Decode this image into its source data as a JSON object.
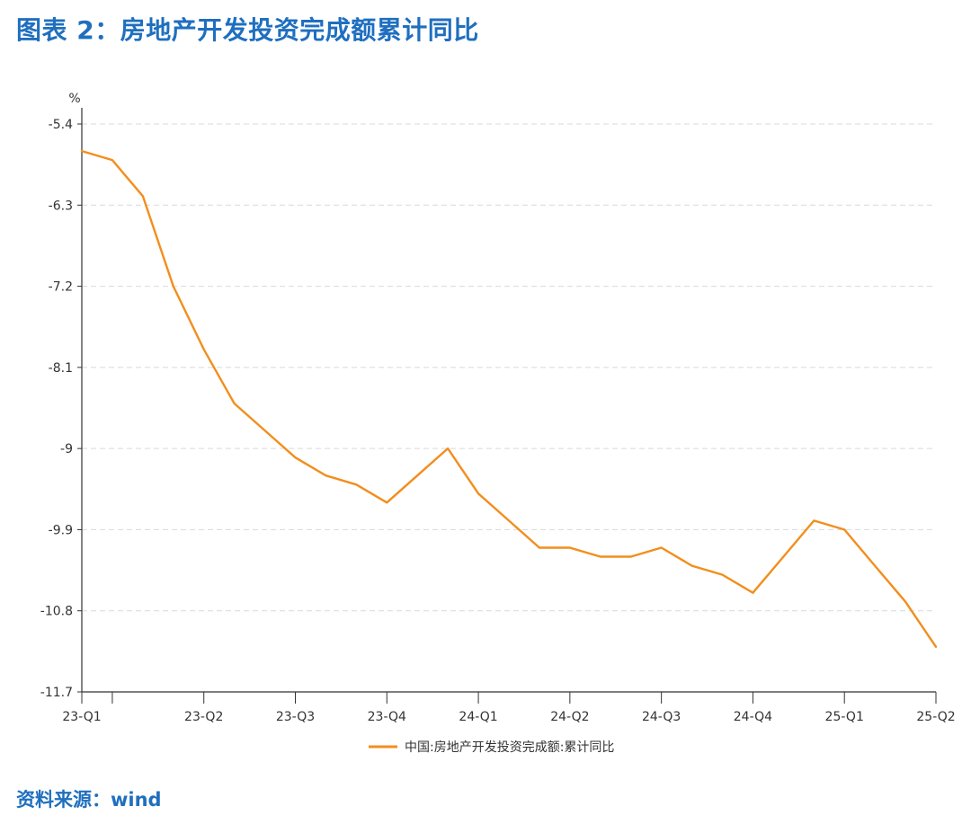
{
  "header": {
    "title": "图表 2：房地产开发投资完成额累计同比"
  },
  "footer": {
    "source": "资料来源：wind"
  },
  "chart_data": {
    "type": "line",
    "ylabel": "%",
    "ylim": [
      -11.7,
      -5.4
    ],
    "yticks": [
      "-5.4",
      "-6.3",
      "-7.2",
      "-8.1",
      "-9",
      "-9.9",
      "-10.8",
      "-11.7"
    ],
    "grid": true,
    "legend_position": "bottom-center",
    "colors": {
      "line": "#f28e1c",
      "axis": "#333333",
      "grid": "#d9d9d9"
    },
    "x_tick_labels": [
      "23-Q1",
      "23-Q2",
      "23-Q3",
      "23-Q4",
      "24-Q1",
      "24-Q2",
      "24-Q3",
      "24-Q4",
      "25-Q1",
      "25-Q2"
    ],
    "x_tick_positions": [
      0,
      4,
      7,
      10,
      13,
      16,
      19,
      22,
      25,
      28
    ],
    "x_unlabeled_ticks": [
      1
    ],
    "series": [
      {
        "name": "中国:房地产开发投资完成额:累计同比",
        "values": [
          -5.7,
          -5.8,
          -6.2,
          -7.2,
          -7.9,
          -8.5,
          -8.8,
          -9.1,
          -9.3,
          -9.4,
          -9.6,
          -9.3,
          -9.0,
          -9.5,
          -9.8,
          -10.1,
          -10.1,
          -10.2,
          -10.2,
          -10.1,
          -10.3,
          -10.4,
          -10.6,
          -10.2,
          -9.8,
          -9.9,
          -10.3,
          -10.7,
          -11.2
        ]
      }
    ]
  }
}
